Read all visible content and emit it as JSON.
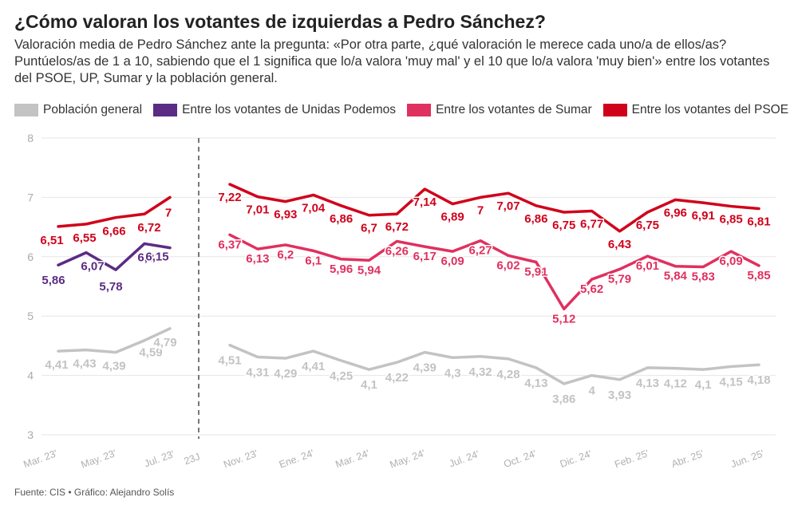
{
  "title": "¿Cómo valoran los votantes de izquierdas a Pedro Sánchez?",
  "subtitle": "Valoración media de Pedro Sánchez ante la pregunta: «Por otra parte, ¿qué valoración le merece cada uno/a de ellos/as? Puntúelos/as de 1 a 10, sabiendo que el 1 significa que lo/a valora 'muy mal' y el 10 que lo/a valora 'muy bien'» entre los votantes del PSOE, UP, Sumar y la población general.",
  "source": "Fuente: CIS • Gráfico: Alejandro Solís",
  "legend": [
    {
      "label": "Población general",
      "color": "#c3c3c3"
    },
    {
      "label": "Entre los votantes de Unidas Podemos",
      "color": "#5b2c83"
    },
    {
      "label": "Entre los votantes de Sumar",
      "color": "#e0305f"
    },
    {
      "label": "Entre los votantes del PSOE",
      "color": "#d0021b"
    }
  ],
  "chart_data": {
    "type": "line",
    "ylim": [
      3,
      8
    ],
    "yticks": [
      "3",
      "4",
      "5",
      "6",
      "7",
      "8"
    ],
    "xticks": [
      "Mar. 23'",
      "May. 23'",
      "Jul. 23'",
      "23J",
      "Nov. 23'",
      "Ene. 24'",
      "Mar. 24'",
      "May. 24'",
      "Jul. 24'",
      "Oct. 24'",
      "Dic. 24'",
      "Feb. 25'",
      "Abr. 25'",
      "Jun. 25'"
    ],
    "annotation": "23J",
    "series": [
      {
        "name": "Población general",
        "color": "#c3c3c3",
        "segments": [
          [
            "4,41",
            "4,43",
            "4,39",
            "4,59",
            "4,79"
          ],
          [
            "4,51",
            "4,31",
            "4,29",
            "4,41",
            "4,25",
            "4,1",
            "4,22",
            "4,39",
            "4,3",
            "4,32",
            "4,28",
            "4,13",
            "3,86",
            "4",
            "3,93",
            "4,13",
            "4,12",
            "4,1",
            "4,15",
            "4,18"
          ]
        ],
        "values": [
          [
            4.41,
            4.43,
            4.39,
            4.59,
            4.79
          ],
          [
            4.51,
            4.31,
            4.29,
            4.41,
            4.25,
            4.1,
            4.22,
            4.39,
            4.3,
            4.32,
            4.28,
            4.13,
            3.86,
            4,
            3.93,
            4.13,
            4.12,
            4.1,
            4.15,
            4.18
          ]
        ]
      },
      {
        "name": "Entre los votantes de Unidas Podemos",
        "color": "#5b2c83",
        "segments": [
          [
            "5,86",
            "6,07",
            "5,78",
            "6,22",
            "6,15"
          ]
        ],
        "values": [
          [
            5.86,
            6.07,
            5.78,
            6.22,
            6.15
          ]
        ]
      },
      {
        "name": "Entre los votantes de Sumar",
        "color": "#e0305f",
        "segments": [
          [
            "6,37",
            "6,13",
            "6,2",
            "6,1",
            "5,96",
            "5,94",
            "6,26",
            "6,17",
            "6,09",
            "6,27",
            "6,02",
            "5,91",
            "5,12",
            "5,62",
            "5,79",
            "6,01",
            "5,84",
            "5,83",
            "6,09",
            "5,85"
          ]
        ],
        "values": [
          [
            6.37,
            6.13,
            6.2,
            6.1,
            5.96,
            5.94,
            6.26,
            6.17,
            6.09,
            6.27,
            6.02,
            5.91,
            5.12,
            5.62,
            5.79,
            6.01,
            5.84,
            5.83,
            6.09,
            5.85
          ]
        ]
      },
      {
        "name": "Entre los votantes del PSOE",
        "color": "#d0021b",
        "segments": [
          [
            "6,51",
            "6,55",
            "6,66",
            "6,72",
            "7"
          ],
          [
            "7,22",
            "7,01",
            "6,93",
            "7,04",
            "6,86",
            "6,7",
            "6,72",
            "7,14",
            "6,89",
            "7",
            "7,07",
            "6,86",
            "6,75",
            "6,77",
            "6,43",
            "6,75",
            "6,96",
            "6,91",
            "6,85",
            "6,81"
          ]
        ],
        "values": [
          [
            6.51,
            6.55,
            6.66,
            6.72,
            7
          ],
          [
            7.22,
            7.01,
            6.93,
            7.04,
            6.86,
            6.7,
            6.72,
            7.14,
            6.89,
            7,
            7.07,
            6.86,
            6.75,
            6.77,
            6.43,
            6.75,
            6.96,
            6.91,
            6.85,
            6.81
          ]
        ]
      }
    ]
  }
}
